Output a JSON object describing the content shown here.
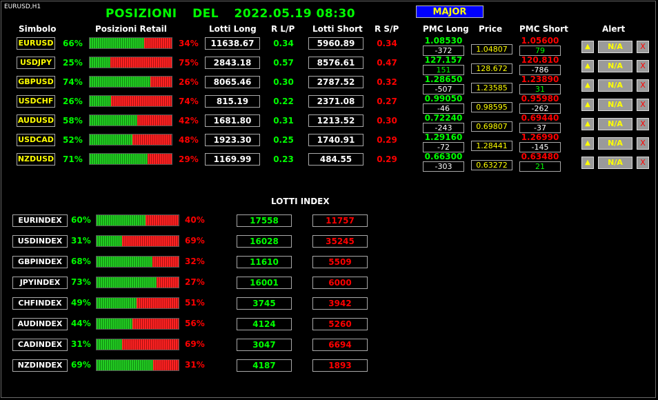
{
  "chart_label": "EURUSD,H1",
  "title": {
    "part1": "POSIZIONI",
    "part2": "DEL",
    "datetime": "2022.05.19 08:30"
  },
  "major_button": "MAJOR",
  "headers": {
    "simbolo": "Simbolo",
    "posizioni_retail": "Posizioni Retail",
    "lotti_long": "Lotti Long",
    "r_lp": "R L/P",
    "lotti_short": "Lotti Short",
    "r_sp": "R S/P",
    "pmc_long": "PMC Long",
    "price": "Price",
    "pmc_short": "PMC Short",
    "alert": "Alert"
  },
  "alert_na": "N/A",
  "alert_x": "X",
  "pairs": [
    {
      "symbol": "EURUSD",
      "long_pct": "66%",
      "short_pct": "34%",
      "long_frac": 0.66,
      "lotti_long": "11638.67",
      "r_lp": "0.34",
      "lotti_short": "5960.89",
      "r_sp": "0.34",
      "pmc_long": "1.08530",
      "pmc_long_diff": "-372",
      "price": "1.04807",
      "pmc_short": "1.05600",
      "pmc_short_diff": "79",
      "pmc_long_diff_color": "#ffffff",
      "pmc_short_diff_color": "#00ff00"
    },
    {
      "symbol": "USDJPY",
      "long_pct": "25%",
      "short_pct": "75%",
      "long_frac": 0.25,
      "lotti_long": "2843.18",
      "r_lp": "0.57",
      "lotti_short": "8576.61",
      "r_sp": "0.47",
      "pmc_long": "127.157",
      "pmc_long_diff": "151",
      "price": "128.672",
      "pmc_short": "120.810",
      "pmc_short_diff": "-786",
      "pmc_long_diff_color": "#00ff00",
      "pmc_short_diff_color": "#ffffff"
    },
    {
      "symbol": "GBPUSD",
      "long_pct": "74%",
      "short_pct": "26%",
      "long_frac": 0.74,
      "lotti_long": "8065.46",
      "r_lp": "0.30",
      "lotti_short": "2787.52",
      "r_sp": "0.32",
      "pmc_long": "1.28650",
      "pmc_long_diff": "-507",
      "price": "1.23585",
      "pmc_short": "1.23890",
      "pmc_short_diff": "31",
      "pmc_long_diff_color": "#ffffff",
      "pmc_short_diff_color": "#00ff00"
    },
    {
      "symbol": "USDCHF",
      "long_pct": "26%",
      "short_pct": "74%",
      "long_frac": 0.26,
      "lotti_long": "815.19",
      "r_lp": "0.22",
      "lotti_short": "2371.08",
      "r_sp": "0.27",
      "pmc_long": "0.99050",
      "pmc_long_diff": "-46",
      "price": "0.98595",
      "pmc_short": "0.95980",
      "pmc_short_diff": "-262",
      "pmc_long_diff_color": "#ffffff",
      "pmc_short_diff_color": "#ffffff"
    },
    {
      "symbol": "AUDUSD",
      "long_pct": "58%",
      "short_pct": "42%",
      "long_frac": 0.58,
      "lotti_long": "1681.80",
      "r_lp": "0.31",
      "lotti_short": "1213.52",
      "r_sp": "0.30",
      "pmc_long": "0.72240",
      "pmc_long_diff": "-243",
      "price": "0.69807",
      "pmc_short": "0.69440",
      "pmc_short_diff": "-37",
      "pmc_long_diff_color": "#ffffff",
      "pmc_short_diff_color": "#ffffff"
    },
    {
      "symbol": "USDCAD",
      "long_pct": "52%",
      "short_pct": "48%",
      "long_frac": 0.52,
      "lotti_long": "1923.30",
      "r_lp": "0.25",
      "lotti_short": "1740.91",
      "r_sp": "0.29",
      "pmc_long": "1.29160",
      "pmc_long_diff": "-72",
      "price": "1.28441",
      "pmc_short": "1.26990",
      "pmc_short_diff": "-145",
      "pmc_long_diff_color": "#ffffff",
      "pmc_short_diff_color": "#ffffff"
    },
    {
      "symbol": "NZDUSD",
      "long_pct": "71%",
      "short_pct": "29%",
      "long_frac": 0.71,
      "lotti_long": "1169.99",
      "r_lp": "0.23",
      "lotti_short": "484.55",
      "r_sp": "0.29",
      "pmc_long": "0.66300",
      "pmc_long_diff": "-303",
      "price": "0.63272",
      "pmc_short": "0.63480",
      "pmc_short_diff": "21",
      "pmc_long_diff_color": "#ffffff",
      "pmc_short_diff_color": "#00ff00"
    }
  ],
  "lotti_index_title": "LOTTI INDEX",
  "indices": [
    {
      "name": "EURINDEX",
      "long_pct": "60%",
      "short_pct": "40%",
      "long_frac": 0.6,
      "long": "17558",
      "short": "11757"
    },
    {
      "name": "USDINDEX",
      "long_pct": "31%",
      "short_pct": "69%",
      "long_frac": 0.31,
      "long": "16028",
      "short": "35245"
    },
    {
      "name": "GBPINDEX",
      "long_pct": "68%",
      "short_pct": "32%",
      "long_frac": 0.68,
      "long": "11610",
      "short": "5509"
    },
    {
      "name": "JPYINDEX",
      "long_pct": "73%",
      "short_pct": "27%",
      "long_frac": 0.73,
      "long": "16001",
      "short": "6000"
    },
    {
      "name": "CHFINDEX",
      "long_pct": "49%",
      "short_pct": "51%",
      "long_frac": 0.49,
      "long": "3745",
      "short": "3942"
    },
    {
      "name": "AUDINDEX",
      "long_pct": "44%",
      "short_pct": "56%",
      "long_frac": 0.44,
      "long": "4124",
      "short": "5260"
    },
    {
      "name": "CADINDEX",
      "long_pct": "31%",
      "short_pct": "69%",
      "long_frac": 0.31,
      "long": "3047",
      "short": "6694"
    },
    {
      "name": "NZDINDEX",
      "long_pct": "69%",
      "short_pct": "31%",
      "long_frac": 0.69,
      "long": "4187",
      "short": "1893"
    }
  ],
  "colors": {
    "long": "#00ff00",
    "short": "#ff0000",
    "symbol": "#ffff00",
    "major_bg": "#0000ff"
  },
  "icons": {
    "alert": "bell-icon"
  }
}
